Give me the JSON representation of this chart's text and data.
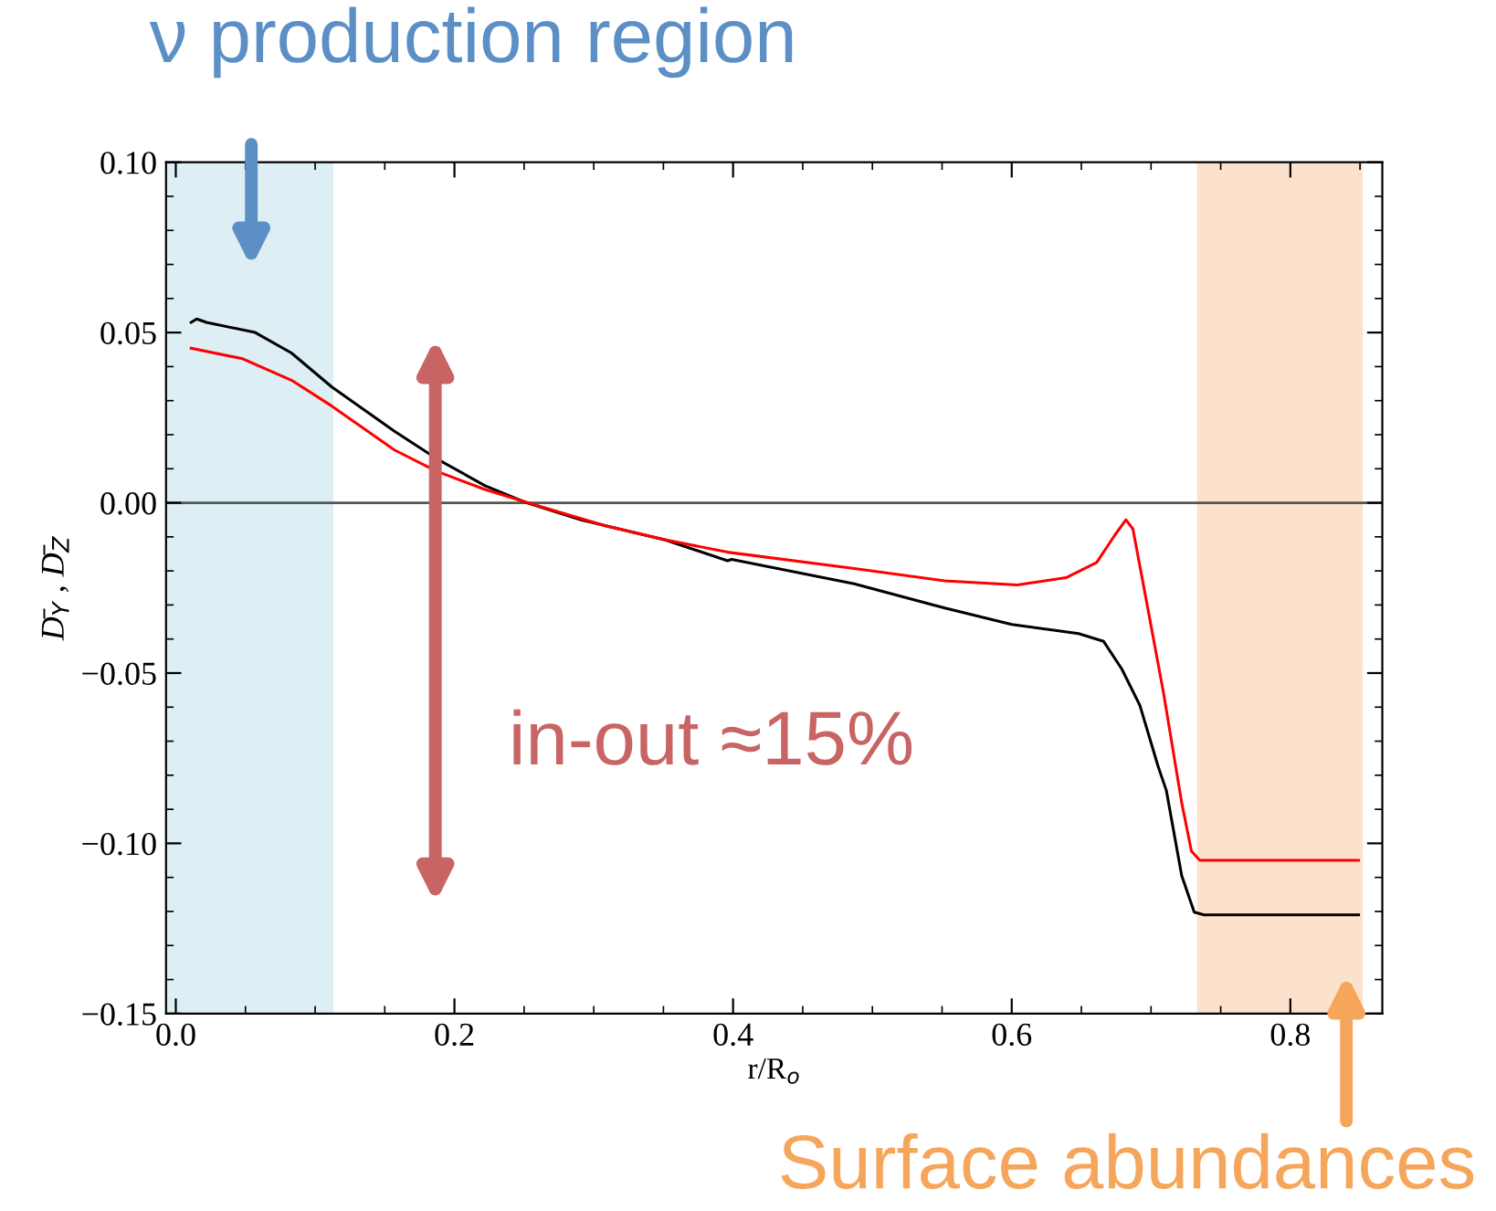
{
  "chart_data": {
    "type": "line",
    "xlabel": "r/R$_{o}$",
    "ylabel": "D̄$_{Y}$ , D̄$_{Z}$",
    "series": [
      {
        "color": "#000000",
        "x": [
          0.011,
          0.015,
          0.022,
          0.057,
          0.083,
          0.112,
          0.157,
          0.187,
          0.222,
          0.252,
          0.291,
          0.352,
          0.396,
          0.399,
          0.487,
          0.552,
          0.6,
          0.648,
          0.666,
          0.679,
          0.692,
          0.705,
          0.711,
          0.722,
          0.731,
          0.738,
          0.849
        ],
        "values": [
          0.053,
          0.054,
          0.053,
          0.05,
          0.044,
          0.034,
          0.021,
          0.013,
          0.005,
          0.0,
          -0.005,
          -0.011,
          -0.017,
          -0.0166,
          -0.0238,
          -0.0309,
          -0.0357,
          -0.0384,
          -0.0407,
          -0.0488,
          -0.0595,
          -0.0773,
          -0.0845,
          -0.1095,
          -0.1202,
          -0.121,
          -0.121
        ]
      },
      {
        "color": "#ff0000",
        "x": [
          0.011,
          0.048,
          0.083,
          0.112,
          0.157,
          0.187,
          0.222,
          0.257,
          0.309,
          0.352,
          0.396,
          0.487,
          0.552,
          0.604,
          0.639,
          0.661,
          0.674,
          0.682,
          0.687,
          0.696,
          0.709,
          0.722,
          0.729,
          0.735,
          0.849
        ],
        "values": [
          0.0454,
          0.0423,
          0.036,
          0.0284,
          0.0155,
          0.0093,
          0.0039,
          -0.0005,
          -0.0068,
          -0.0109,
          -0.0145,
          -0.0193,
          -0.0229,
          -0.0241,
          -0.022,
          -0.0175,
          -0.0095,
          -0.005,
          -0.0077,
          -0.0273,
          -0.0559,
          -0.088,
          -0.1023,
          -0.105,
          -0.105
        ]
      }
    ],
    "xlim": [
      -0.007,
      0.866
    ],
    "ylim": [
      -0.15,
      0.1
    ],
    "xticks": [
      {
        "value": 0,
        "label": "0.0"
      },
      {
        "value": 0.2,
        "label": "0.2"
      },
      {
        "value": 0.4,
        "label": "0.4"
      },
      {
        "value": 0.6,
        "label": "0.6"
      },
      {
        "value": 0.8,
        "label": "0.8"
      }
    ],
    "yticks": [
      {
        "value": -0.15,
        "label": "−0.15"
      },
      {
        "value": -0.1,
        "label": "−0.10"
      },
      {
        "value": -0.05,
        "label": "−0.05"
      },
      {
        "value": 0,
        "label": "0.00"
      },
      {
        "value": 0.05,
        "label": "0.05"
      },
      {
        "value": 0.1,
        "label": "0.10"
      }
    ],
    "ref_lines": [
      {
        "axis": "y",
        "value": 0,
        "color": "#555555"
      }
    ],
    "bands": [
      {
        "axis": "x",
        "from": -0.007,
        "to": 0.113,
        "color": "#ddeff4"
      },
      {
        "axis": "x",
        "from": 0.733,
        "to": 0.852,
        "color": "#fce2cc"
      }
    ],
    "annotations": [
      "ν production region",
      "in-out ≈15%",
      "Surface abundances"
    ],
    "grid": false,
    "line_style": "solid",
    "marker": "none"
  }
}
